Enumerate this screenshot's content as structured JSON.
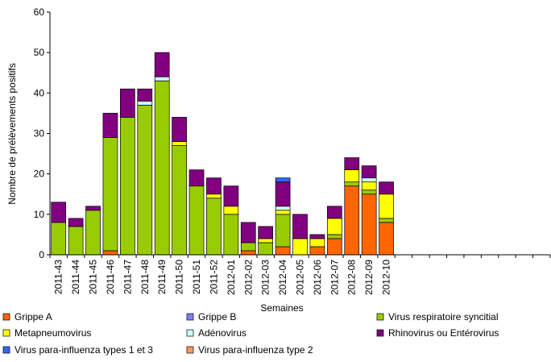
{
  "chart_data": {
    "type": "stacked_bar",
    "x_label": "Semaines",
    "y_label": "Nombre de prélèvements positifs",
    "categories": [
      "2011-43",
      "2011-44",
      "2011-45",
      "2011-46",
      "2011-47",
      "2011-48",
      "2011-49",
      "2011-50",
      "2011-51",
      "2011-52",
      "2012-01",
      "2012-02",
      "2012-03",
      "2012-04",
      "2012-05",
      "2012-06",
      "2012-07",
      "2012-08",
      "2012-09",
      "2012-10",
      null,
      null,
      null,
      null,
      null,
      null,
      null,
      null,
      null
    ],
    "series": [
      {
        "name": "Grippe A",
        "color": "#ff6600",
        "values": [
          0,
          0,
          0,
          1,
          0,
          0,
          0,
          0,
          0,
          0,
          0,
          1,
          0,
          2,
          0,
          2,
          4,
          17,
          15,
          8,
          null,
          null,
          null,
          null,
          null,
          null,
          null,
          null,
          null
        ]
      },
      {
        "name": "Grippe B",
        "color": "#8080ff",
        "values": [
          0,
          0,
          0,
          0,
          0,
          0,
          0,
          0,
          0,
          0,
          0,
          0,
          0,
          0,
          0,
          0,
          0,
          0,
          0,
          0,
          null,
          null,
          null,
          null,
          null,
          null,
          null,
          null,
          null
        ]
      },
      {
        "name": "Virus respiratoire syncitial",
        "color": "#99cc00",
        "values": [
          8,
          7,
          11,
          28,
          34,
          37,
          43,
          27,
          17,
          14,
          10,
          2,
          3,
          8,
          0,
          0,
          1,
          1,
          1,
          1,
          null,
          null,
          null,
          null,
          null,
          null,
          null,
          null,
          null
        ]
      },
      {
        "name": "Metapneumovirus",
        "color": "#ffff00",
        "values": [
          0,
          0,
          0,
          0,
          0,
          0,
          0,
          1,
          0,
          1,
          2,
          0,
          1,
          1,
          4,
          2,
          4,
          3,
          2,
          6,
          null,
          null,
          null,
          null,
          null,
          null,
          null,
          null,
          null
        ]
      },
      {
        "name": "Adénovirus",
        "color": "#ccffff",
        "values": [
          0,
          0,
          0,
          0,
          0,
          1,
          1,
          0,
          0,
          0,
          0,
          0,
          0,
          1,
          0,
          0,
          0,
          0,
          1,
          0,
          null,
          null,
          null,
          null,
          null,
          null,
          null,
          null,
          null
        ]
      },
      {
        "name": "Rhinovirus ou Entérovirus",
        "color": "#800080",
        "values": [
          5,
          2,
          1,
          6,
          7,
          3,
          6,
          6,
          4,
          4,
          5,
          5,
          3,
          6,
          6,
          1,
          3,
          3,
          3,
          3,
          null,
          null,
          null,
          null,
          null,
          null,
          null,
          null,
          null
        ]
      },
      {
        "name": "Virus para-influenza types 1 et 3",
        "color": "#3366ff",
        "values": [
          0,
          0,
          0,
          0,
          0,
          0,
          0,
          0,
          0,
          0,
          0,
          0,
          0,
          1,
          0,
          0,
          0,
          0,
          0,
          0,
          null,
          null,
          null,
          null,
          null,
          null,
          null,
          null,
          null
        ]
      },
      {
        "name": "Virus para-influenza type 2",
        "color": "#ff9966",
        "values": [
          0,
          0,
          0,
          0,
          0,
          0,
          0,
          0,
          0,
          0,
          0,
          0,
          0,
          0,
          0,
          0,
          0,
          0,
          0,
          0,
          null,
          null,
          null,
          null,
          null,
          null,
          null,
          null,
          null
        ]
      }
    ],
    "ylim": [
      0,
      60
    ],
    "yticks": [
      0,
      10,
      20,
      30,
      40,
      50,
      60
    ],
    "grid": false
  }
}
